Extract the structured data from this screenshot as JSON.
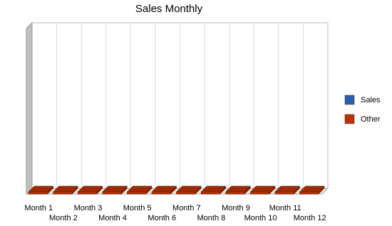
{
  "chart_data": {
    "type": "bar",
    "title": "Sales Monthly",
    "categories": [
      "Month 1",
      "Month 2",
      "Month 3",
      "Month 4",
      "Month 5",
      "Month 6",
      "Month 7",
      "Month 8",
      "Month 9",
      "Month 10",
      "Month 11",
      "Month 12"
    ],
    "series": [
      {
        "name": "Sales",
        "color": "#2a5faa",
        "values": [
          0,
          0,
          0,
          0,
          0,
          0,
          0,
          0,
          0,
          0,
          0,
          0
        ]
      },
      {
        "name": "Other",
        "color": "#b83300",
        "values": [
          0,
          0,
          0,
          0,
          0,
          0,
          0,
          0,
          0,
          0,
          0,
          0
        ]
      }
    ],
    "grid": true,
    "legend": "right"
  }
}
